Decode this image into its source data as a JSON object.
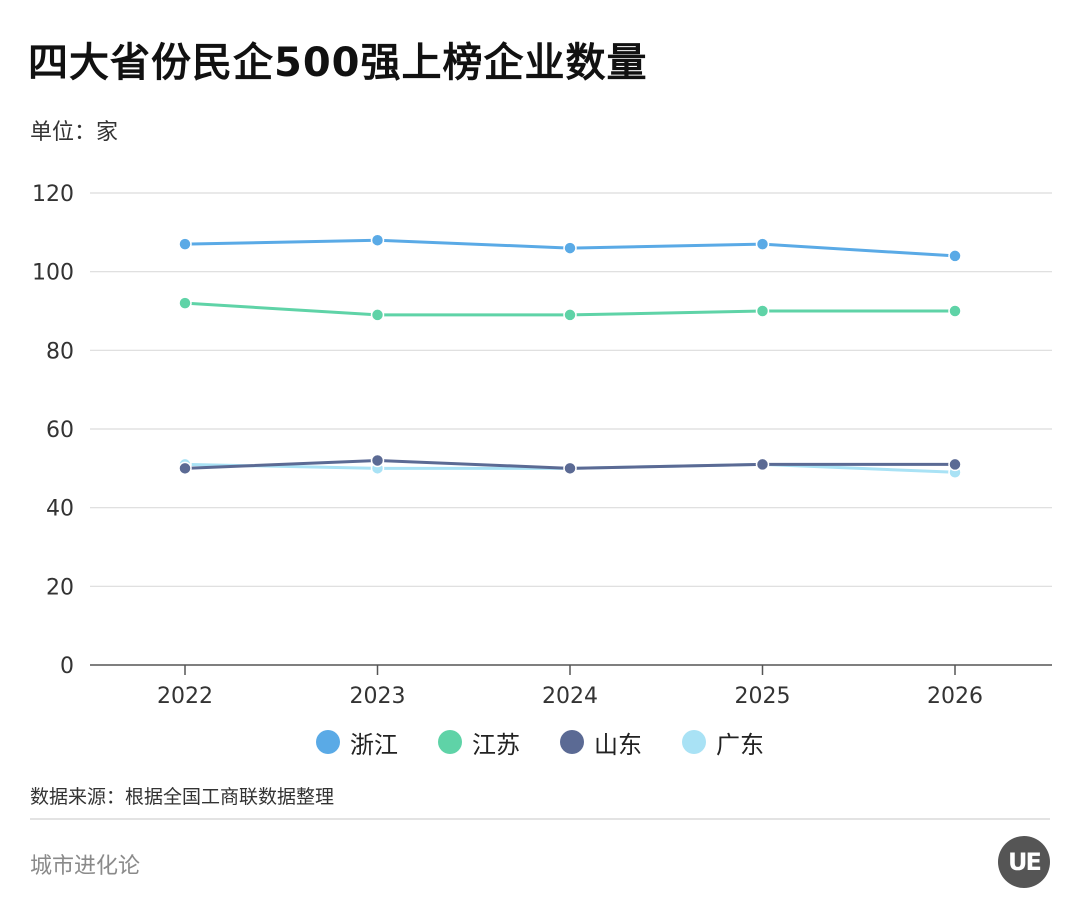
{
  "header": {
    "title": "四大省份民企500强上榜企业数量",
    "unit": "单位：家"
  },
  "footer": {
    "source": "数据来源：根据全国工商联数据整理",
    "brand": "城市进化论",
    "logo_text": "UE"
  },
  "colors": {
    "zhejiang": "#5aaae6",
    "jiangsu": "#5fd3a7",
    "shandong": "#5b6a94",
    "guangdong": "#a9e2f5"
  },
  "chart_data": {
    "type": "line",
    "title": "四大省份民企500强上榜企业数量",
    "ylabel": "单位：家",
    "x": [
      "2022",
      "2023",
      "2024",
      "2025",
      "2026"
    ],
    "ylim": [
      0,
      120
    ],
    "yticks": [
      0,
      20,
      40,
      60,
      80,
      100,
      120
    ],
    "grid": true,
    "legend": "bottom-center",
    "series": [
      {
        "name": "浙江",
        "color": "#5aaae6",
        "values": [
          107,
          108,
          106,
          107,
          104
        ]
      },
      {
        "name": "江苏",
        "color": "#5fd3a7",
        "values": [
          92,
          89,
          89,
          90,
          90
        ]
      },
      {
        "name": "山东",
        "color": "#5b6a94",
        "values": [
          50,
          52,
          50,
          51,
          51
        ]
      },
      {
        "name": "广东",
        "color": "#a9e2f5",
        "values": [
          51,
          50,
          50,
          51,
          49
        ]
      }
    ]
  }
}
